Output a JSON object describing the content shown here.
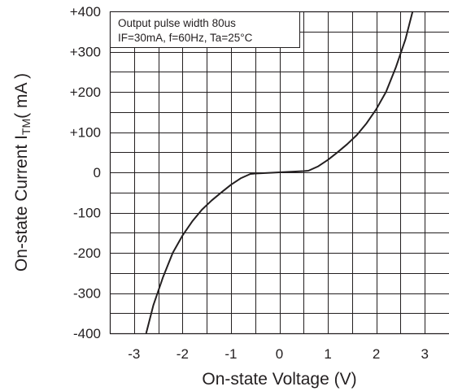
{
  "chart_data": {
    "type": "line",
    "title": "",
    "xlabel": "On-state Voltage (V)",
    "ylabel": {
      "main": "On-state Current I",
      "subscript": "TM",
      "unit": "( mA )"
    },
    "annotation": [
      "Output pulse width 80us",
      "IF=30mA, f=60Hz, Ta=25°C"
    ],
    "xlim": [
      -3.5,
      3.5
    ],
    "ylim": [
      -400,
      400
    ],
    "x_ticks": [
      -3,
      -2,
      -1,
      0,
      1,
      2,
      3
    ],
    "x_tick_labels": [
      "-3",
      "-2",
      "-1",
      "0",
      "1",
      "2",
      "3"
    ],
    "y_ticks": [
      400,
      300,
      200,
      100,
      0,
      -100,
      -200,
      -300,
      -400
    ],
    "y_tick_labels": [
      "+400",
      "+300",
      "+200",
      "+100",
      "0",
      "-100",
      "-200",
      "-300",
      "-400"
    ],
    "grid": true,
    "legend": "none",
    "series": [
      {
        "color": "#231f20",
        "x": [
          -2.75,
          -2.6,
          -2.4,
          -2.2,
          -2.0,
          -1.8,
          -1.6,
          -1.4,
          -1.2,
          -1.0,
          -0.8,
          -0.6,
          -0.5,
          0.0,
          0.5,
          0.6,
          0.8,
          1.0,
          1.2,
          1.4,
          1.6,
          1.8,
          2.0,
          2.2,
          2.4,
          2.6,
          2.75
        ],
        "y": [
          -400,
          -330,
          -260,
          -200,
          -157,
          -122,
          -93,
          -70,
          -50,
          -31,
          -15,
          -4,
          -3,
          0,
          3,
          4,
          15,
          31,
          50,
          70,
          93,
          122,
          157,
          200,
          260,
          330,
          400
        ]
      }
    ]
  }
}
